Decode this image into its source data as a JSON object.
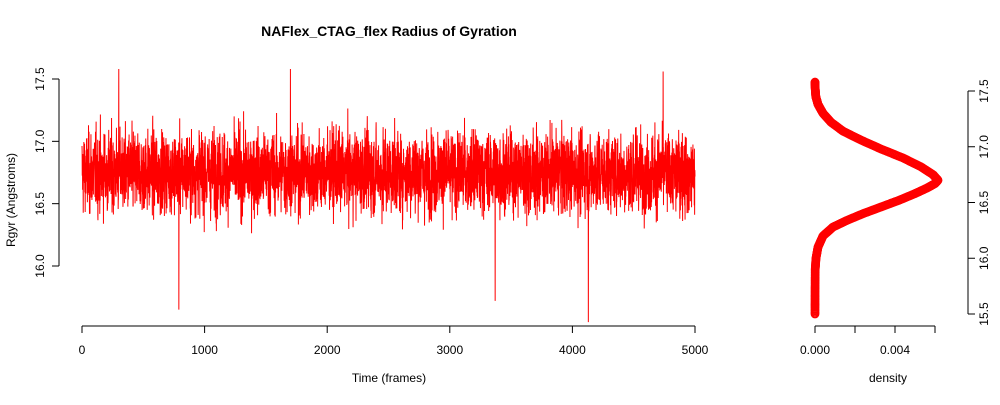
{
  "chart_data": [
    {
      "type": "line",
      "title": "NAFlex_CTAG_flex Radius of Gyration",
      "xlabel": "Time (frames)",
      "ylabel": "Rgyr (Angstroms)",
      "xlim": [
        0,
        5000
      ],
      "ylim": [
        15.6,
        17.6
      ],
      "x_ticks": [
        0,
        1000,
        2000,
        3000,
        4000,
        5000
      ],
      "y_ticks": [
        16.0,
        16.5,
        17.0,
        17.5
      ],
      "x_tick_labels": [
        "0",
        "1000",
        "2000",
        "3000",
        "4000",
        "5000"
      ],
      "y_tick_labels": [
        "16.0",
        "16.5",
        "17.0",
        "17.5"
      ],
      "grid": false,
      "series": [
        {
          "color": "#ff0000",
          "n_frames": 5001,
          "mean": 16.75,
          "min": 15.55,
          "max": 17.58,
          "notable_points": [
            {
              "x": 300,
              "y": 17.58
            },
            {
              "x": 790,
              "y": 15.65
            },
            {
              "x": 1700,
              "y": 17.58
            },
            {
              "x": 3370,
              "y": 15.72
            },
            {
              "x": 4130,
              "y": 15.55
            },
            {
              "x": 4740,
              "y": 17.56
            }
          ]
        }
      ]
    },
    {
      "type": "line",
      "title": "",
      "xlabel": "density",
      "ylabel": "",
      "xlim": [
        0,
        0.006
      ],
      "ylim": [
        15.5,
        17.6
      ],
      "x_ticks": [
        0,
        0.002,
        0.004,
        0.006
      ],
      "x_tick_labels": [
        "0.000",
        "",
        "0.004",
        ""
      ],
      "y_ticks": [
        15.5,
        16.0,
        16.5,
        17.0,
        17.5
      ],
      "y_tick_labels": [
        "15.5",
        "16.0",
        "16.5",
        "17.0",
        "17.5"
      ],
      "y_axis_position": "right",
      "grid": false,
      "series": [
        {
          "color": "#ff0000",
          "x": [
            0.0,
            2e-06,
            1e-05,
            5e-05,
            0.00015,
            0.0004,
            0.0009,
            0.0016,
            0.0024,
            0.0033,
            0.0042,
            0.005,
            0.0056,
            0.006,
            0.00615,
            0.0059,
            0.0053,
            0.0044,
            0.0033,
            0.0023,
            0.0014,
            0.0008,
            0.0004,
            0.00015,
            4e-05,
            1e-05,
            0.0
          ],
          "y": [
            15.5,
            15.7,
            15.9,
            16.0,
            16.1,
            16.2,
            16.28,
            16.34,
            16.4,
            16.46,
            16.52,
            16.58,
            16.63,
            16.67,
            16.7,
            16.75,
            16.82,
            16.9,
            16.98,
            17.06,
            17.14,
            17.22,
            17.3,
            17.38,
            17.45,
            17.52,
            17.58
          ]
        }
      ]
    }
  ]
}
